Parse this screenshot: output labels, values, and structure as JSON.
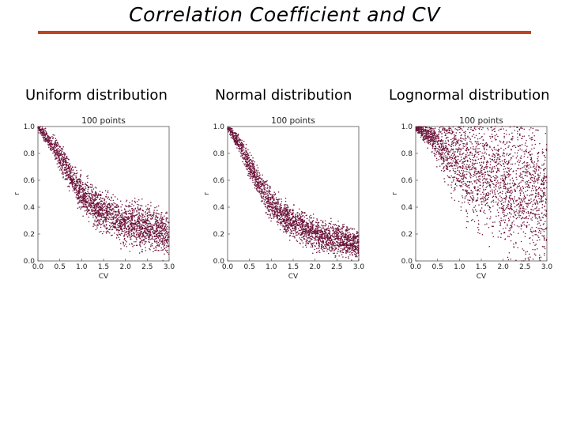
{
  "title": "Correlation Coefficient and CV",
  "colors": {
    "rule": "#c0451f",
    "points": "#6b1239"
  },
  "chart_data": [
    {
      "type": "scatter",
      "panel_title": "Uniform distribution",
      "title": "100 points",
      "xlabel": "CV",
      "ylabel": "r",
      "xlim": [
        0,
        3.0
      ],
      "ylim": [
        0,
        1.0
      ],
      "xticks": [
        "0.0",
        "0.5",
        "1.0",
        "1.5",
        "2.0",
        "2.5",
        "3.0"
      ],
      "yticks": [
        "0.0",
        "0.2",
        "0.4",
        "0.6",
        "0.8",
        "1.0"
      ],
      "grid": false,
      "trend": {
        "x": [
          0.0,
          0.25,
          0.5,
          0.75,
          1.0,
          1.25,
          1.5,
          2.0,
          2.5,
          3.0
        ],
        "y": [
          1.0,
          0.9,
          0.78,
          0.63,
          0.5,
          0.42,
          0.36,
          0.29,
          0.25,
          0.2
        ],
        "spread": [
          0.02,
          0.04,
          0.07,
          0.08,
          0.09,
          0.1,
          0.1,
          0.11,
          0.11,
          0.11
        ]
      }
    },
    {
      "type": "scatter",
      "panel_title": "Normal distribution",
      "title": "100 points",
      "xlabel": "CV",
      "ylabel": "r",
      "xlim": [
        0,
        3.0
      ],
      "ylim": [
        0,
        1.0
      ],
      "xticks": [
        "0.0",
        "0.5",
        "1.0",
        "1.5",
        "2.0",
        "2.5",
        "3.0"
      ],
      "yticks": [
        "0.0",
        "0.2",
        "0.4",
        "0.6",
        "0.8",
        "1.0"
      ],
      "grid": false,
      "trend": {
        "x": [
          0.0,
          0.25,
          0.5,
          0.75,
          1.0,
          1.25,
          1.5,
          2.0,
          2.5,
          3.0
        ],
        "y": [
          1.0,
          0.88,
          0.72,
          0.55,
          0.42,
          0.34,
          0.28,
          0.2,
          0.16,
          0.12
        ],
        "spread": [
          0.02,
          0.04,
          0.06,
          0.07,
          0.08,
          0.08,
          0.08,
          0.08,
          0.08,
          0.07
        ]
      }
    },
    {
      "type": "scatter",
      "panel_title": "Lognormal distribution",
      "title": "100 points",
      "xlabel": "CV",
      "ylabel": "r",
      "xlim": [
        0,
        3.0
      ],
      "ylim": [
        0,
        1.0
      ],
      "xticks": [
        "0.0",
        "0.5",
        "1.0",
        "1.5",
        "2.0",
        "2.5",
        "3.0"
      ],
      "yticks": [
        "0.0",
        "0.2",
        "0.4",
        "0.6",
        "0.8",
        "1.0"
      ],
      "grid": false,
      "trend": {
        "x": [
          0.0,
          0.25,
          0.5,
          0.75,
          1.0,
          1.25,
          1.5,
          2.0,
          2.5,
          3.0
        ],
        "y": [
          1.0,
          0.94,
          0.87,
          0.8,
          0.74,
          0.7,
          0.65,
          0.58,
          0.52,
          0.47
        ],
        "spread": [
          0.02,
          0.05,
          0.1,
          0.17,
          0.22,
          0.26,
          0.28,
          0.3,
          0.32,
          0.33
        ]
      }
    }
  ]
}
